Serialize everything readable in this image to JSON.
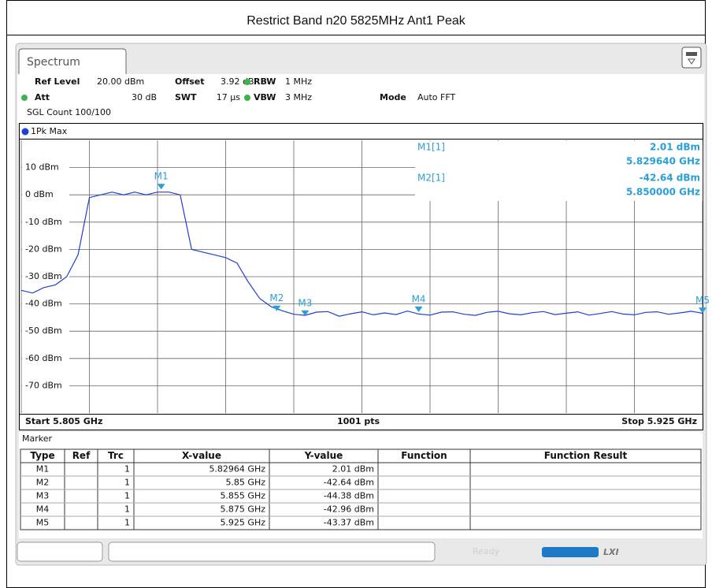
{
  "header": {
    "title": "Restrict Band n20 5825MHz Ant1 Peak"
  },
  "tab": {
    "label": "Spectrum"
  },
  "info": {
    "ref_level_label": "Ref Level",
    "ref_level": "20.00 dBm",
    "offset_label": "Offset",
    "offset": "3.92 dB",
    "rbw_label": "RBW",
    "rbw": "1 MHz",
    "att_label": "Att",
    "att": "30 dB",
    "swt_label": "SWT",
    "swt": "17 µs",
    "vbw_label": "VBW",
    "vbw": "3 MHz",
    "mode_label": "Mode",
    "mode": "Auto FFT",
    "sgl_count": "SGL Count 100/100"
  },
  "chart_data": {
    "type": "line",
    "xlim": [
      5.805,
      5.925
    ],
    "ylim": [
      -80,
      20
    ],
    "yticks": [
      {
        "value": 10,
        "label": "10 dBm"
      },
      {
        "value": 0,
        "label": "0 dBm"
      },
      {
        "value": -10,
        "label": "-10 dBm"
      },
      {
        "value": -20,
        "label": "-20 dBm"
      },
      {
        "value": -30,
        "label": "-30 dBm"
      },
      {
        "value": -40,
        "label": "-40 dBm"
      },
      {
        "value": -50,
        "label": "-50 dBm"
      },
      {
        "value": -60,
        "label": "-60 dBm"
      },
      {
        "value": -70,
        "label": "-70 dBm"
      }
    ],
    "grid": true,
    "x": [
      5.805,
      5.807,
      5.809,
      5.811,
      5.813,
      5.815,
      5.817,
      5.819,
      5.821,
      5.823,
      5.825,
      5.827,
      5.829,
      5.831,
      5.833,
      5.835,
      5.837,
      5.839,
      5.841,
      5.843,
      5.845,
      5.847,
      5.849,
      5.851,
      5.853,
      5.855,
      5.857,
      5.859,
      5.861,
      5.863,
      5.865,
      5.867,
      5.869,
      5.871,
      5.873,
      5.875,
      5.877,
      5.879,
      5.881,
      5.883,
      5.885,
      5.887,
      5.889,
      5.891,
      5.893,
      5.895,
      5.897,
      5.899,
      5.901,
      5.903,
      5.905,
      5.907,
      5.909,
      5.911,
      5.913,
      5.915,
      5.917,
      5.919,
      5.921,
      5.923,
      5.925
    ],
    "series": [
      {
        "name": "1Pk Max",
        "color": "#1f3fd6",
        "values": [
          -35,
          -36,
          -34,
          -33,
          -30,
          -22,
          -1,
          0,
          1,
          0,
          1,
          0,
          1,
          1,
          0,
          -20,
          -21,
          -22,
          -23,
          -25,
          -32,
          -38,
          -41,
          -42.5,
          -43.8,
          -44.2,
          -43,
          -42.8,
          -44.5,
          -43.6,
          -42.9,
          -44,
          -43.3,
          -43.9,
          -42.6,
          -43.7,
          -44.1,
          -43,
          -42.9,
          -43.8,
          -44.2,
          -43.1,
          -42.7,
          -43.6,
          -44,
          -43.2,
          -42.8,
          -43.9,
          -43.4,
          -42.9,
          -44.1,
          -43.5,
          -42.8,
          -43.7,
          -44,
          -43.1,
          -42.9,
          -43.8,
          -43.3,
          -42.7,
          -43.4
        ]
      }
    ],
    "marker_color": "#2a9fd6",
    "markers": [
      {
        "name": "M1",
        "x": 5.82964,
        "y": 2.01
      },
      {
        "name": "M2",
        "x": 5.85,
        "y": -42.64
      },
      {
        "name": "M3",
        "x": 5.855,
        "y": -44.38
      },
      {
        "name": "M4",
        "x": 5.875,
        "y": -42.96
      },
      {
        "name": "M5",
        "x": 5.925,
        "y": -43.37
      }
    ],
    "marker_info": [
      {
        "label": "M1[1]",
        "value": "2.01 dBm",
        "x": "5.829640 GHz"
      },
      {
        "label": "M2[1]",
        "value": "-42.64 dBm",
        "x": "5.850000 GHz"
      }
    ],
    "start_label": "Start 5.805 GHz",
    "points_label": "1001 pts",
    "stop_label": "Stop 5.925 GHz"
  },
  "marker_table": {
    "title": "Marker",
    "columns": [
      "Type",
      "Ref",
      "Trc",
      "X-value",
      "Y-value",
      "Function",
      "Function Result"
    ],
    "rows": [
      {
        "type": "M1",
        "trc": "1",
        "x": "5.82964 GHz",
        "y": "2.01 dBm"
      },
      {
        "type": "M2",
        "trc": "1",
        "x": "5.85 GHz",
        "y": "-42.64 dBm"
      },
      {
        "type": "M3",
        "trc": "1",
        "x": "5.855 GHz",
        "y": "-44.38 dBm"
      },
      {
        "type": "M4",
        "trc": "1",
        "x": "5.875 GHz",
        "y": "-42.96 dBm"
      },
      {
        "type": "M5",
        "trc": "1",
        "x": "5.925 GHz",
        "y": "-43.37 dBm"
      }
    ]
  },
  "status": {
    "state": "Ready"
  }
}
